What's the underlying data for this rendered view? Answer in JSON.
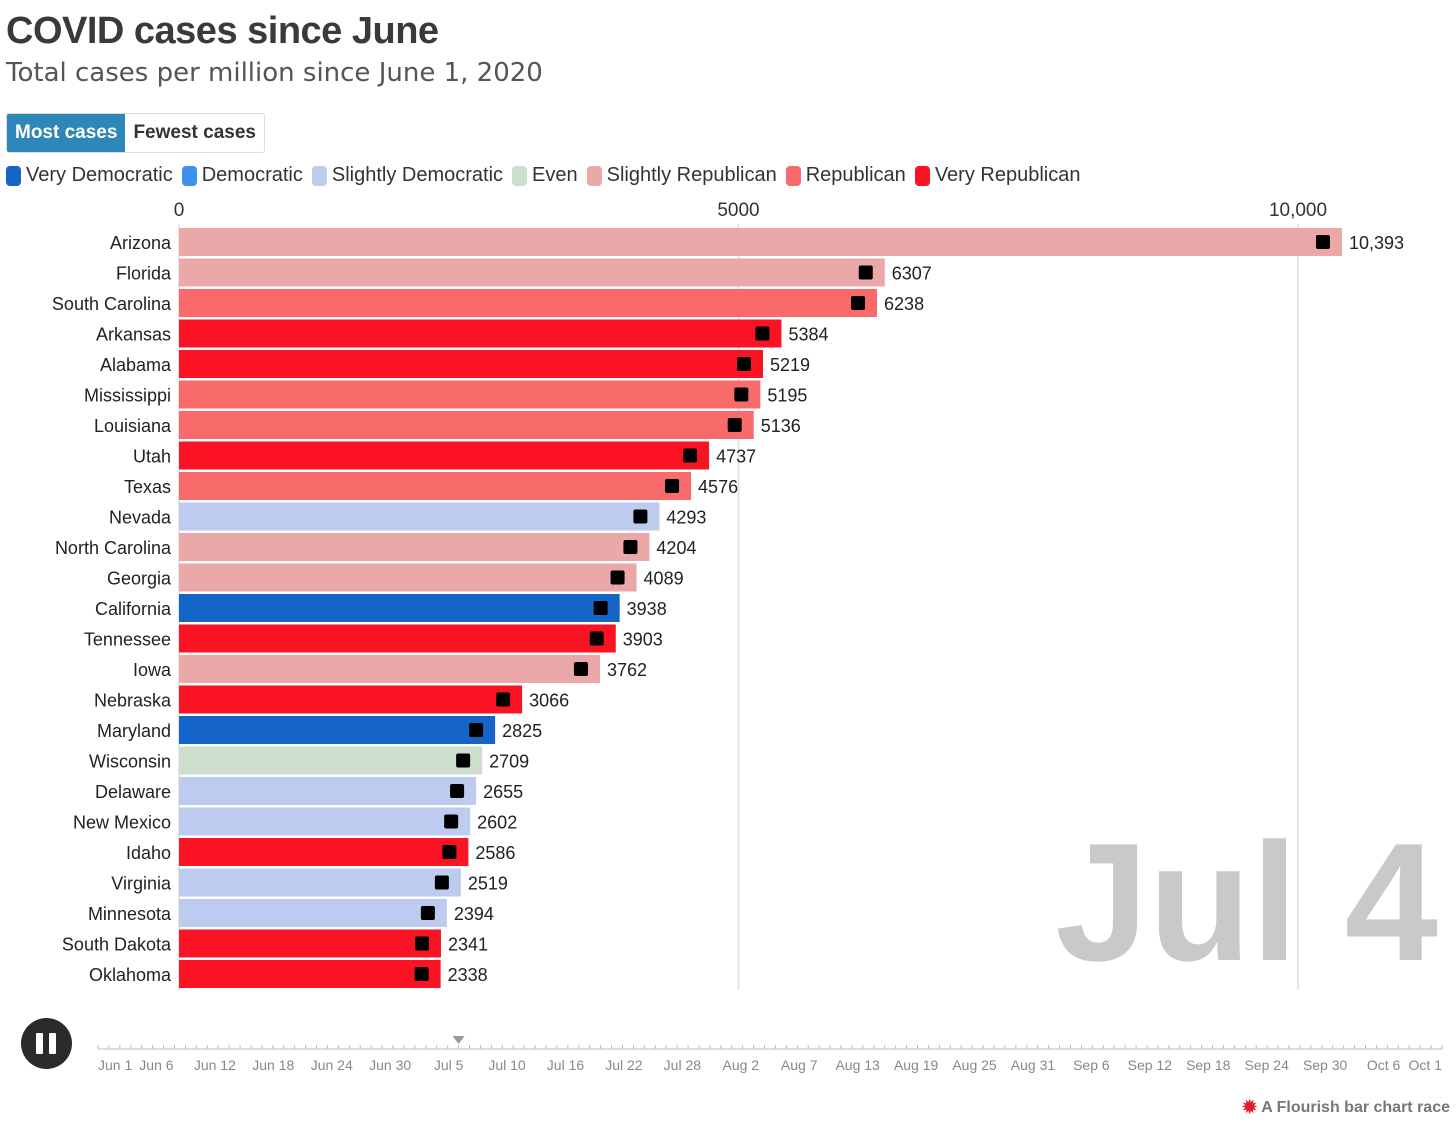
{
  "header": {
    "title": "COVID cases since June",
    "subtitle": "Total cases per million since June 1, 2020"
  },
  "tabs": [
    {
      "label": "Most cases",
      "active": true
    },
    {
      "label": "Fewest cases",
      "active": false
    }
  ],
  "legend": [
    {
      "label": "Very Democratic",
      "color": "#1565c9"
    },
    {
      "label": "Democratic",
      "color": "#3d8ff0"
    },
    {
      "label": "Slightly Democratic",
      "color": "#bccbee"
    },
    {
      "label": "Even",
      "color": "#cddfcc"
    },
    {
      "label": "Slightly Republican",
      "color": "#eaa8a8"
    },
    {
      "label": "Republican",
      "color": "#f96b6b"
    },
    {
      "label": "Very Republican",
      "color": "#fa1323"
    }
  ],
  "chart_data": {
    "type": "bar",
    "orientation": "horizontal",
    "title": "COVID cases since June",
    "subtitle": "Total cases per million since June 1, 2020",
    "xlim": [
      0,
      11000
    ],
    "x_ticks": [
      {
        "value": 0,
        "label": "0"
      },
      {
        "value": 5000,
        "label": "5000"
      },
      {
        "value": 10000,
        "label": "10,000"
      }
    ],
    "date_label": "Jul 4",
    "bars": [
      {
        "state": "Arizona",
        "value": 10393,
        "label": "10,393",
        "category": "Slightly Republican"
      },
      {
        "state": "Florida",
        "value": 6307,
        "label": "6307",
        "category": "Slightly Republican"
      },
      {
        "state": "South Carolina",
        "value": 6238,
        "label": "6238",
        "category": "Republican"
      },
      {
        "state": "Arkansas",
        "value": 5384,
        "label": "5384",
        "category": "Very Republican"
      },
      {
        "state": "Alabama",
        "value": 5219,
        "label": "5219",
        "category": "Very Republican"
      },
      {
        "state": "Mississippi",
        "value": 5195,
        "label": "5195",
        "category": "Republican"
      },
      {
        "state": "Louisiana",
        "value": 5136,
        "label": "5136",
        "category": "Republican"
      },
      {
        "state": "Utah",
        "value": 4737,
        "label": "4737",
        "category": "Very Republican"
      },
      {
        "state": "Texas",
        "value": 4576,
        "label": "4576",
        "category": "Republican"
      },
      {
        "state": "Nevada",
        "value": 4293,
        "label": "4293",
        "category": "Slightly Democratic"
      },
      {
        "state": "North Carolina",
        "value": 4204,
        "label": "4204",
        "category": "Slightly Republican"
      },
      {
        "state": "Georgia",
        "value": 4089,
        "label": "4089",
        "category": "Slightly Republican"
      },
      {
        "state": "California",
        "value": 3938,
        "label": "3938",
        "category": "Very Democratic"
      },
      {
        "state": "Tennessee",
        "value": 3903,
        "label": "3903",
        "category": "Very Republican"
      },
      {
        "state": "Iowa",
        "value": 3762,
        "label": "3762",
        "category": "Slightly Republican"
      },
      {
        "state": "Nebraska",
        "value": 3066,
        "label": "3066",
        "category": "Very Republican"
      },
      {
        "state": "Maryland",
        "value": 2825,
        "label": "2825",
        "category": "Very Democratic"
      },
      {
        "state": "Wisconsin",
        "value": 2709,
        "label": "2709",
        "category": "Even"
      },
      {
        "state": "Delaware",
        "value": 2655,
        "label": "2655",
        "category": "Slightly Democratic"
      },
      {
        "state": "New Mexico",
        "value": 2602,
        "label": "2602",
        "category": "Slightly Democratic"
      },
      {
        "state": "Idaho",
        "value": 2586,
        "label": "2586",
        "category": "Very Republican"
      },
      {
        "state": "Virginia",
        "value": 2519,
        "label": "2519",
        "category": "Slightly Democratic"
      },
      {
        "state": "Minnesota",
        "value": 2394,
        "label": "2394",
        "category": "Slightly Democratic"
      },
      {
        "state": "South Dakota",
        "value": 2341,
        "label": "2341",
        "category": "Very Republican"
      },
      {
        "state": "Oklahoma",
        "value": 2338,
        "label": "2338",
        "category": "Very Republican"
      }
    ]
  },
  "timeline": {
    "labels": [
      "Jun 1",
      "Jun 6",
      "Jun 12",
      "Jun 18",
      "Jun 24",
      "Jun 30",
      "Jul 5",
      "Jul 10",
      "Jul 16",
      "Jul 22",
      "Jul 28",
      "Aug 2",
      "Aug 7",
      "Aug 13",
      "Aug 19",
      "Aug 25",
      "Aug 31",
      "Sep 6",
      "Sep 12",
      "Sep 18",
      "Sep 24",
      "Sep 30",
      "Oct 6",
      "Oct 1"
    ],
    "current_day_index": 33,
    "total_days": 123
  },
  "controls": {
    "pause_label": "Pause"
  },
  "credit": {
    "text": "A Flourish bar chart race"
  }
}
